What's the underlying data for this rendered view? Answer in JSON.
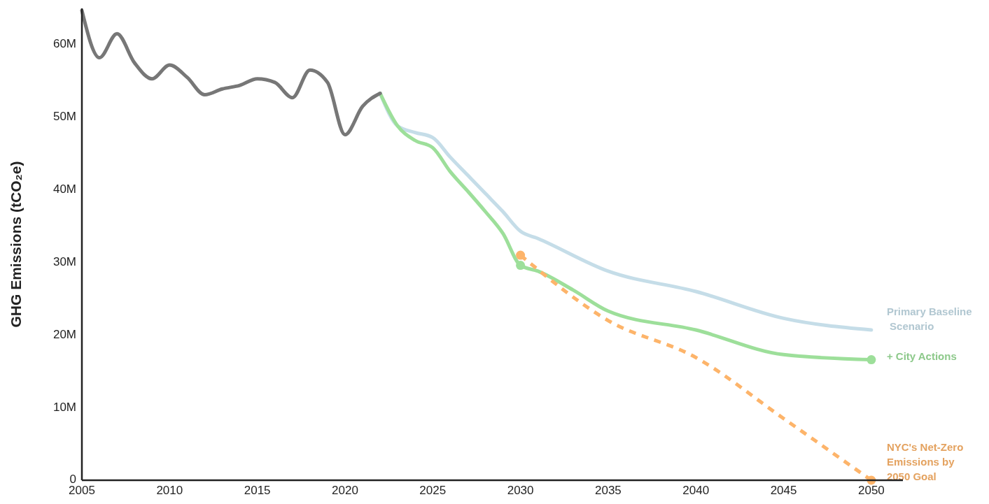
{
  "chart_data": {
    "type": "line",
    "ylabel": "GHG Emissions (tCO₂e)",
    "xlim": [
      2005,
      2051.8
    ],
    "xticks": [
      2005,
      2010,
      2015,
      2020,
      2025,
      2030,
      2035,
      2040,
      2045,
      2050
    ],
    "ylim": [
      0,
      65
    ],
    "yticks": [
      0,
      {
        "value": 10,
        "label": "10M"
      },
      {
        "value": 20,
        "label": "20M"
      },
      {
        "value": 30,
        "label": "30M"
      },
      {
        "value": 40,
        "label": "40M"
      },
      {
        "value": 50,
        "label": "50M"
      },
      {
        "value": 60,
        "label": "60M"
      }
    ],
    "grid": false,
    "series": [
      {
        "color": "#c5dde8",
        "x": [
          2022,
          2023,
          2024,
          2025,
          2026,
          2027,
          2028,
          2029,
          2030,
          2031,
          2035,
          2040,
          2045,
          2050
        ],
        "values": [
          53.3,
          48.8,
          47.9,
          47.2,
          44.5,
          42,
          39.5,
          37,
          34.3,
          33.3,
          28.8,
          26,
          22.3,
          20.7
        ],
        "name": "Primary Baseline\n Scenario"
      },
      {
        "color": "#9ddf9a",
        "x": [
          2022,
          2023,
          2024,
          2025,
          2026,
          2027,
          2028,
          2029,
          2030,
          2031,
          2033,
          2035,
          2040,
          2045,
          2050
        ],
        "values": [
          53.3,
          48.8,
          46.8,
          45.8,
          42.5,
          39.8,
          37,
          34,
          29.6,
          28.8,
          26.2,
          23.3,
          20.7,
          17.3,
          16.6
        ],
        "name": "+ City Actions"
      },
      {
        "line_style": "dashed",
        "color": "#fdb46a",
        "x": [
          2030,
          2035,
          2040,
          2045,
          2050
        ],
        "values": [
          31,
          22,
          16.9,
          8.5,
          0
        ],
        "name": "NYC's Net-Zero\nEmissions by\n2050 Goal"
      },
      {
        "color": "#777777",
        "x": [
          2005,
          2006,
          2007,
          2008,
          2009,
          2010,
          2011,
          2012,
          2013,
          2014,
          2015,
          2016,
          2017,
          2018,
          2019,
          2020,
          2021,
          2022
        ],
        "values": [
          64.7,
          58.2,
          61.5,
          57.5,
          55.3,
          57.2,
          55.5,
          53.1,
          53.9,
          54.4,
          55.3,
          54.8,
          52.7,
          56.5,
          54.8,
          47.6,
          51.5,
          53.3
        ]
      },
      {
        "type": "scatter",
        "marker": "circle",
        "color": "#9ddf9a",
        "x": [
          2030,
          2050
        ],
        "values": [
          29.6,
          16.6
        ]
      },
      {
        "type": "scatter",
        "marker": "circle",
        "color": "#fdb46a",
        "x": [
          2030,
          2050
        ],
        "values": [
          31,
          0
        ]
      }
    ]
  }
}
